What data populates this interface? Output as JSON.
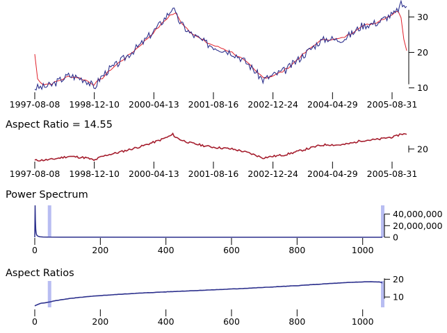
{
  "colors": {
    "series_blue": "#2b2f8c",
    "series_red": "#e0202a",
    "series_darkred": "#a51d2d",
    "highlight": "#b8bdf2"
  },
  "chart_data": [
    {
      "id": "price",
      "type": "line",
      "title": "",
      "xlabel": "",
      "ylabel": "",
      "x_ticks": [
        "1997-08-08",
        "1998-12-10",
        "2000-04-13",
        "2001-08-16",
        "2002-12-24",
        "2004-04-29",
        "2005-08-31"
      ],
      "y_ticks": [
        10,
        20,
        30
      ],
      "ylim": [
        7,
        34
      ],
      "series": [
        {
          "role": "price",
          "color": "#2b2f8c",
          "points": [
            [
              0,
              10.0
            ],
            [
              3,
              10.2
            ],
            [
              6,
              10.8
            ],
            [
              9,
              12.2
            ],
            [
              12,
              13.5
            ],
            [
              15,
              13.0
            ],
            [
              18,
              12.3
            ],
            [
              20,
              11.0
            ],
            [
              21,
              9.8
            ],
            [
              23,
              12.5
            ],
            [
              26,
              15.0
            ],
            [
              29,
              16.5
            ],
            [
              32,
              18.5
            ],
            [
              35,
              20.5
            ],
            [
              38,
              22.5
            ],
            [
              41,
              25.0
            ],
            [
              44,
              27.5
            ],
            [
              46,
              29.5
            ],
            [
              48,
              31.5
            ],
            [
              49,
              33.0
            ],
            [
              50,
              30.5
            ],
            [
              52,
              28.0
            ],
            [
              55,
              25.5
            ],
            [
              58,
              24.0
            ],
            [
              61,
              22.5
            ],
            [
              64,
              21.5
            ],
            [
              67,
              20.8
            ],
            [
              70,
              20.0
            ],
            [
              73,
              18.5
            ],
            [
              76,
              16.5
            ],
            [
              79,
              14.0
            ],
            [
              81,
              12.2
            ],
            [
              83,
              13.0
            ],
            [
              86,
              14.0
            ],
            [
              89,
              15.0
            ],
            [
              92,
              17.0
            ],
            [
              95,
              19.0
            ],
            [
              98,
              21.0
            ],
            [
              101,
              23.0
            ],
            [
              104,
              24.0
            ],
            [
              107,
              23.5
            ],
            [
              110,
              24.0
            ],
            [
              113,
              25.5
            ],
            [
              116,
              27.5
            ],
            [
              119,
              28.0
            ],
            [
              122,
              28.5
            ],
            [
              125,
              30.0
            ],
            [
              128,
              31.0
            ],
            [
              130,
              33.5
            ],
            [
              132,
              33.0
            ]
          ]
        },
        {
          "role": "smoothed",
          "color": "#e0202a",
          "points": [
            [
              0,
              19.5
            ],
            [
              1,
              12.5
            ],
            [
              3,
              11.0
            ],
            [
              6,
              11.2
            ],
            [
              9,
              12.2
            ],
            [
              12,
              13.2
            ],
            [
              15,
              13.0
            ],
            [
              18,
              12.2
            ],
            [
              21,
              11.0
            ],
            [
              24,
              12.8
            ],
            [
              27,
              15.2
            ],
            [
              30,
              17.2
            ],
            [
              33,
              19.0
            ],
            [
              36,
              21.0
            ],
            [
              39,
              23.2
            ],
            [
              42,
              25.5
            ],
            [
              45,
              28.0
            ],
            [
              48,
              30.5
            ],
            [
              50,
              31.0
            ],
            [
              52,
              28.5
            ],
            [
              55,
              26.0
            ],
            [
              58,
              24.2
            ],
            [
              61,
              22.8
            ],
            [
              64,
              21.8
            ],
            [
              67,
              21.0
            ],
            [
              70,
              20.0
            ],
            [
              73,
              18.5
            ],
            [
              76,
              16.6
            ],
            [
              79,
              14.2
            ],
            [
              82,
              12.8
            ],
            [
              85,
              13.6
            ],
            [
              88,
              14.6
            ],
            [
              91,
              16.4
            ],
            [
              94,
              18.6
            ],
            [
              97,
              20.6
            ],
            [
              100,
              22.6
            ],
            [
              103,
              23.8
            ],
            [
              106,
              23.6
            ],
            [
              109,
              24.0
            ],
            [
              112,
              25.2
            ],
            [
              115,
              27.0
            ],
            [
              118,
              27.8
            ],
            [
              121,
              28.4
            ],
            [
              124,
              29.6
            ],
            [
              127,
              30.8
            ],
            [
              129,
              31.8
            ],
            [
              130,
              30.0
            ],
            [
              131,
              24.0
            ],
            [
              132,
              20.5
            ]
          ]
        }
      ]
    },
    {
      "id": "banked",
      "type": "line",
      "title": "Aspect Ratio = 14.55",
      "xlabel": "",
      "ylabel": "",
      "x_ticks": [
        "1997-08-08",
        "1998-12-10",
        "2000-04-13",
        "2001-08-16",
        "2002-12-24",
        "2004-04-29",
        "2005-08-31"
      ],
      "y_ticks": [
        20
      ],
      "ylim": [
        7,
        34
      ],
      "series": [
        {
          "role": "price",
          "color": "#a51d2d",
          "points": [
            [
              0,
              10.0
            ],
            [
              3,
              10.2
            ],
            [
              6,
              10.8
            ],
            [
              9,
              12.2
            ],
            [
              12,
              13.5
            ],
            [
              15,
              13.0
            ],
            [
              18,
              12.3
            ],
            [
              20,
              11.0
            ],
            [
              21,
              9.8
            ],
            [
              23,
              12.5
            ],
            [
              26,
              15.0
            ],
            [
              29,
              16.5
            ],
            [
              32,
              18.5
            ],
            [
              35,
              20.5
            ],
            [
              38,
              22.5
            ],
            [
              41,
              25.0
            ],
            [
              44,
              27.5
            ],
            [
              46,
              29.5
            ],
            [
              48,
              31.5
            ],
            [
              49,
              33.0
            ],
            [
              50,
              30.5
            ],
            [
              52,
              28.0
            ],
            [
              55,
              25.5
            ],
            [
              58,
              24.0
            ],
            [
              61,
              22.5
            ],
            [
              64,
              21.5
            ],
            [
              67,
              20.8
            ],
            [
              70,
              20.0
            ],
            [
              73,
              18.5
            ],
            [
              76,
              16.5
            ],
            [
              79,
              14.0
            ],
            [
              81,
              12.2
            ],
            [
              83,
              13.0
            ],
            [
              86,
              14.0
            ],
            [
              89,
              15.0
            ],
            [
              92,
              17.0
            ],
            [
              95,
              19.0
            ],
            [
              98,
              21.0
            ],
            [
              101,
              23.0
            ],
            [
              104,
              24.0
            ],
            [
              107,
              23.5
            ],
            [
              110,
              24.0
            ],
            [
              113,
              25.5
            ],
            [
              116,
              27.5
            ],
            [
              119,
              28.0
            ],
            [
              122,
              28.5
            ],
            [
              125,
              30.0
            ],
            [
              128,
              31.0
            ],
            [
              130,
              33.5
            ],
            [
              132,
              33.0
            ]
          ]
        }
      ]
    },
    {
      "id": "spectrum",
      "type": "line",
      "title": "Power Spectrum",
      "xlabel": "",
      "ylabel": "",
      "xlim": [
        0,
        1060
      ],
      "ylim": [
        0,
        55000000
      ],
      "x_ticks": [
        0,
        200,
        400,
        600,
        800,
        1000
      ],
      "x_tick_labels": [
        "0",
        "200",
        "400",
        "600",
        "800",
        "1000"
      ],
      "y_ticks": [
        0,
        20000000,
        40000000
      ],
      "y_tick_labels": [
        "0",
        "20,000,000",
        "40,000,000"
      ],
      "highlights_x": [
        44,
        1060
      ],
      "series": [
        {
          "role": "spectrum",
          "color": "#2b2f8c",
          "points": [
            [
              0,
              0
            ],
            [
              1,
              55000000
            ],
            [
              2,
              30000000
            ],
            [
              3,
              14000000
            ],
            [
              4,
              8000000
            ],
            [
              5,
              5000000
            ],
            [
              7,
              3000000
            ],
            [
              10,
              1800000
            ],
            [
              15,
              1000000
            ],
            [
              25,
              500000
            ],
            [
              40,
              250000
            ],
            [
              80,
              120000
            ],
            [
              200,
              60000
            ],
            [
              500,
              30000
            ],
            [
              1060,
              20000
            ]
          ]
        }
      ]
    },
    {
      "id": "ratios",
      "type": "line",
      "title": "Aspect Ratios",
      "xlabel": "",
      "ylabel": "",
      "xlim": [
        0,
        1060
      ],
      "ylim": [
        3,
        21
      ],
      "x_ticks": [
        0,
        200,
        400,
        600,
        800,
        1000
      ],
      "x_tick_labels": [
        "0",
        "200",
        "400",
        "600",
        "800",
        "1000"
      ],
      "y_ticks": [
        10,
        20
      ],
      "y_tick_labels": [
        "10",
        "20"
      ],
      "highlights_x": [
        44,
        1060
      ],
      "series": [
        {
          "role": "aspect_ratio",
          "color": "#2b2f8c",
          "points": [
            [
              0,
              5.0
            ],
            [
              10,
              5.8
            ],
            [
              20,
              6.5
            ],
            [
              40,
              7.0
            ],
            [
              60,
              7.8
            ],
            [
              100,
              9.0
            ],
            [
              150,
              10.0
            ],
            [
              200,
              10.8
            ],
            [
              300,
              12.0
            ],
            [
              400,
              12.9
            ],
            [
              500,
              13.7
            ],
            [
              600,
              14.5
            ],
            [
              700,
              15.4
            ],
            [
              800,
              16.4
            ],
            [
              900,
              17.6
            ],
            [
              980,
              18.4
            ],
            [
              1020,
              18.6
            ],
            [
              1050,
              18.5
            ],
            [
              1060,
              18.0
            ]
          ]
        }
      ]
    }
  ]
}
